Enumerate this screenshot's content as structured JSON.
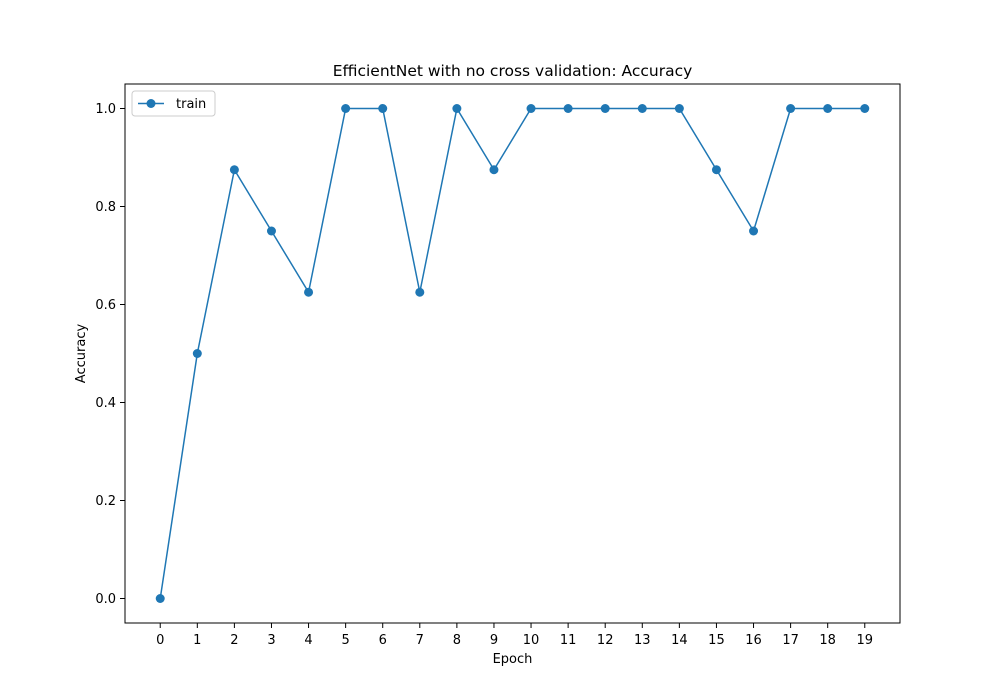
{
  "chart_data": {
    "type": "line",
    "title": "EfficientNet with no cross validation: Accuracy",
    "xlabel": "Epoch",
    "ylabel": "Accuracy",
    "x": [
      0,
      1,
      2,
      3,
      4,
      5,
      6,
      7,
      8,
      9,
      10,
      11,
      12,
      13,
      14,
      15,
      16,
      17,
      18,
      19
    ],
    "x_tick_labels": [
      "0",
      "1",
      "2",
      "3",
      "4",
      "5",
      "6",
      "7",
      "8",
      "9",
      "10",
      "11",
      "12",
      "13",
      "14",
      "15",
      "16",
      "17",
      "18",
      "19"
    ],
    "y_ticks": [
      0.0,
      0.2,
      0.4,
      0.6,
      0.8,
      1.0
    ],
    "y_tick_labels": [
      "0.0",
      "0.2",
      "0.4",
      "0.6",
      "0.8",
      "1.0"
    ],
    "xlim": [
      -0.95,
      19.95
    ],
    "ylim": [
      -0.05,
      1.05
    ],
    "grid": false,
    "legend_position": "top-left",
    "series": [
      {
        "name": "train",
        "color": "#1f77b4",
        "marker": "circle",
        "values": [
          0.0,
          0.5,
          0.875,
          0.75,
          0.625,
          1.0,
          1.0,
          0.625,
          1.0,
          0.875,
          1.0,
          1.0,
          1.0,
          1.0,
          1.0,
          0.875,
          0.75,
          1.0,
          1.0,
          1.0
        ]
      }
    ]
  }
}
